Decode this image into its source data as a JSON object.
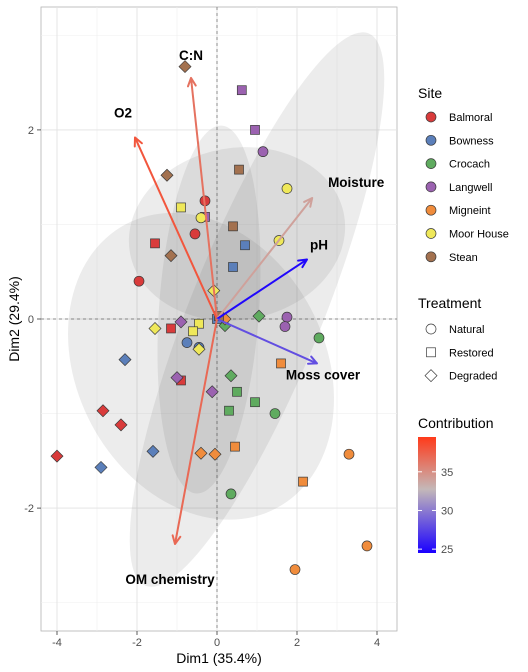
{
  "chart_data": {
    "type": "scatter",
    "subtype": "pca-biplot",
    "xlabel": "Dim1 (35.4%)",
    "ylabel": "Dim2 (29.4%)",
    "xlim": [
      -4.4,
      4.5
    ],
    "ylim": [
      -3.3,
      3.3
    ],
    "xticks": [
      -4,
      -2,
      0,
      2,
      4
    ],
    "yticks": [
      -2,
      0,
      2
    ],
    "grid": true,
    "legend_placement": "right",
    "site_legend": {
      "title": "Site",
      "entries": [
        {
          "name": "Balmoral",
          "color": "#d93b3b"
        },
        {
          "name": "Bowness",
          "color": "#5b7fba"
        },
        {
          "name": "Crocach",
          "color": "#5fab5f"
        },
        {
          "name": "Langwell",
          "color": "#9b62b0"
        },
        {
          "name": "Migneint",
          "color": "#f08c3c"
        },
        {
          "name": "Moor House",
          "color": "#efe85a"
        },
        {
          "name": "Stean",
          "color": "#a3714f"
        }
      ]
    },
    "treatment_legend": {
      "title": "Treatment",
      "entries": [
        {
          "name": "Natural",
          "shape": "circle"
        },
        {
          "name": "Restored",
          "shape": "square"
        },
        {
          "name": "Degraded",
          "shape": "diamond"
        }
      ]
    },
    "contribution_legend": {
      "title": "Contribution",
      "ticks": [
        25,
        30,
        35
      ],
      "range": [
        24.5,
        39.5
      ],
      "colors": [
        "#1a00ff",
        "#c4b8b8",
        "#ff3a1a"
      ]
    },
    "ellipses": [
      {
        "cx": -0.4,
        "cy": -0.5,
        "rx": 3.1,
        "ry": 1.7,
        "angle": 28
      },
      {
        "cx": 0.5,
        "cy": 0.9,
        "rx": 2.15,
        "ry": 1.15,
        "angle": 100
      },
      {
        "cx": 1.0,
        "cy": 0.1,
        "rx": 1.65,
        "ry": 3.15,
        "angle": -22
      },
      {
        "cx": -0.2,
        "cy": 0.1,
        "rx": 1.25,
        "ry": 1.95,
        "angle": -4
      }
    ],
    "variables": [
      {
        "name": "C:N",
        "x": -0.65,
        "y": 2.55,
        "contrib": 36.5
      },
      {
        "name": "O2",
        "x": -2.05,
        "y": 1.92,
        "contrib": 38
      },
      {
        "name": "Moisture",
        "x": 2.38,
        "y": 1.28,
        "contrib": 34
      },
      {
        "name": "pH",
        "x": 2.25,
        "y": 0.63,
        "contrib": 24.8
      },
      {
        "name": "Moss cover",
        "x": 2.5,
        "y": -0.47,
        "contrib": 28
      },
      {
        "name": "OM chemistry",
        "x": -1.05,
        "y": -2.38,
        "contrib": 37
      }
    ],
    "points": [
      {
        "site": "Balmoral",
        "treatment": "Natural",
        "x": -1.95,
        "y": 0.4
      },
      {
        "site": "Balmoral",
        "treatment": "Natural",
        "x": -0.55,
        "y": 0.9
      },
      {
        "site": "Balmoral",
        "treatment": "Natural",
        "x": -0.3,
        "y": 1.25
      },
      {
        "site": "Balmoral",
        "treatment": "Restored",
        "x": -1.55,
        "y": 0.8
      },
      {
        "site": "Balmoral",
        "treatment": "Restored",
        "x": -1.15,
        "y": -0.1
      },
      {
        "site": "Balmoral",
        "treatment": "Restored",
        "x": -0.9,
        "y": -0.65
      },
      {
        "site": "Balmoral",
        "treatment": "Degraded",
        "x": -4.0,
        "y": -1.45
      },
      {
        "site": "Balmoral",
        "treatment": "Degraded",
        "x": -2.85,
        "y": -0.97
      },
      {
        "site": "Balmoral",
        "treatment": "Degraded",
        "x": -2.4,
        "y": -1.12
      },
      {
        "site": "Bowness",
        "treatment": "Natural",
        "x": -0.75,
        "y": -0.25
      },
      {
        "site": "Bowness",
        "treatment": "Natural",
        "x": -0.45,
        "y": -0.3
      },
      {
        "site": "Bowness",
        "treatment": "Restored",
        "x": 0.4,
        "y": 0.55
      },
      {
        "site": "Bowness",
        "treatment": "Restored",
        "x": 0.7,
        "y": 0.78
      },
      {
        "site": "Bowness",
        "treatment": "Restored",
        "x": 0.0,
        "y": 0.0
      },
      {
        "site": "Bowness",
        "treatment": "Degraded",
        "x": -2.3,
        "y": -0.43
      },
      {
        "site": "Bowness",
        "treatment": "Degraded",
        "x": -2.9,
        "y": -1.57
      },
      {
        "site": "Bowness",
        "treatment": "Degraded",
        "x": -1.6,
        "y": -1.4
      },
      {
        "site": "Crocach",
        "treatment": "Natural",
        "x": 2.55,
        "y": -0.2
      },
      {
        "site": "Crocach",
        "treatment": "Natural",
        "x": 1.45,
        "y": -1.0
      },
      {
        "site": "Crocach",
        "treatment": "Natural",
        "x": 0.35,
        "y": -1.85
      },
      {
        "site": "Crocach",
        "treatment": "Restored",
        "x": 0.5,
        "y": -0.77
      },
      {
        "site": "Crocach",
        "treatment": "Restored",
        "x": 0.95,
        "y": -0.88
      },
      {
        "site": "Crocach",
        "treatment": "Restored",
        "x": 0.3,
        "y": -0.97
      },
      {
        "site": "Crocach",
        "treatment": "Degraded",
        "x": 1.05,
        "y": 0.03
      },
      {
        "site": "Crocach",
        "treatment": "Degraded",
        "x": 0.35,
        "y": -0.6
      },
      {
        "site": "Crocach",
        "treatment": "Degraded",
        "x": 0.2,
        "y": -0.07
      },
      {
        "site": "Langwell",
        "treatment": "Natural",
        "x": 1.15,
        "y": 1.77
      },
      {
        "site": "Langwell",
        "treatment": "Natural",
        "x": 1.75,
        "y": 0.02
      },
      {
        "site": "Langwell",
        "treatment": "Natural",
        "x": 1.7,
        "y": -0.08
      },
      {
        "site": "Langwell",
        "treatment": "Restored",
        "x": 0.95,
        "y": 2.0
      },
      {
        "site": "Langwell",
        "treatment": "Restored",
        "x": 0.62,
        "y": 2.42
      },
      {
        "site": "Langwell",
        "treatment": "Restored",
        "x": -0.3,
        "y": 1.08
      },
      {
        "site": "Langwell",
        "treatment": "Degraded",
        "x": -0.9,
        "y": -0.03
      },
      {
        "site": "Langwell",
        "treatment": "Degraded",
        "x": -1.0,
        "y": -0.62
      },
      {
        "site": "Langwell",
        "treatment": "Degraded",
        "x": -0.12,
        "y": -0.77
      },
      {
        "site": "Migneint",
        "treatment": "Natural",
        "x": 3.3,
        "y": -1.43
      },
      {
        "site": "Migneint",
        "treatment": "Natural",
        "x": 3.75,
        "y": -2.4
      },
      {
        "site": "Migneint",
        "treatment": "Natural",
        "x": 1.95,
        "y": -2.65
      },
      {
        "site": "Migneint",
        "treatment": "Restored",
        "x": 1.6,
        "y": -0.47
      },
      {
        "site": "Migneint",
        "treatment": "Restored",
        "x": 0.45,
        "y": -1.35
      },
      {
        "site": "Migneint",
        "treatment": "Restored",
        "x": 2.15,
        "y": -1.72
      },
      {
        "site": "Migneint",
        "treatment": "Degraded",
        "x": -0.4,
        "y": -1.42
      },
      {
        "site": "Migneint",
        "treatment": "Degraded",
        "x": -0.05,
        "y": -1.43
      },
      {
        "site": "Migneint",
        "treatment": "Degraded",
        "x": 0.2,
        "y": 0.0
      },
      {
        "site": "Moor House",
        "treatment": "Natural",
        "x": 1.75,
        "y": 1.38
      },
      {
        "site": "Moor House",
        "treatment": "Natural",
        "x": 1.55,
        "y": 0.83
      },
      {
        "site": "Moor House",
        "treatment": "Natural",
        "x": -0.4,
        "y": 1.07
      },
      {
        "site": "Moor House",
        "treatment": "Restored",
        "x": -0.9,
        "y": 1.18
      },
      {
        "site": "Moor House",
        "treatment": "Restored",
        "x": -0.45,
        "y": -0.05
      },
      {
        "site": "Moor House",
        "treatment": "Restored",
        "x": -0.6,
        "y": -0.13
      },
      {
        "site": "Moor House",
        "treatment": "Degraded",
        "x": -1.55,
        "y": -0.1
      },
      {
        "site": "Moor House",
        "treatment": "Degraded",
        "x": -0.45,
        "y": -0.32
      },
      {
        "site": "Moor House",
        "treatment": "Degraded",
        "x": -0.08,
        "y": 0.3
      },
      {
        "site": "Stean",
        "treatment": "Restored",
        "x": 0.55,
        "y": 1.58
      },
      {
        "site": "Stean",
        "treatment": "Restored",
        "x": 0.4,
        "y": 0.98
      },
      {
        "site": "Stean",
        "treatment": "Restored",
        "x": 0.05,
        "y": 0.03
      },
      {
        "site": "Stean",
        "treatment": "Degraded",
        "x": -0.8,
        "y": 2.67
      },
      {
        "site": "Stean",
        "treatment": "Degraded",
        "x": -1.25,
        "y": 1.52
      },
      {
        "site": "Stean",
        "treatment": "Degraded",
        "x": -1.15,
        "y": 0.67
      }
    ]
  }
}
